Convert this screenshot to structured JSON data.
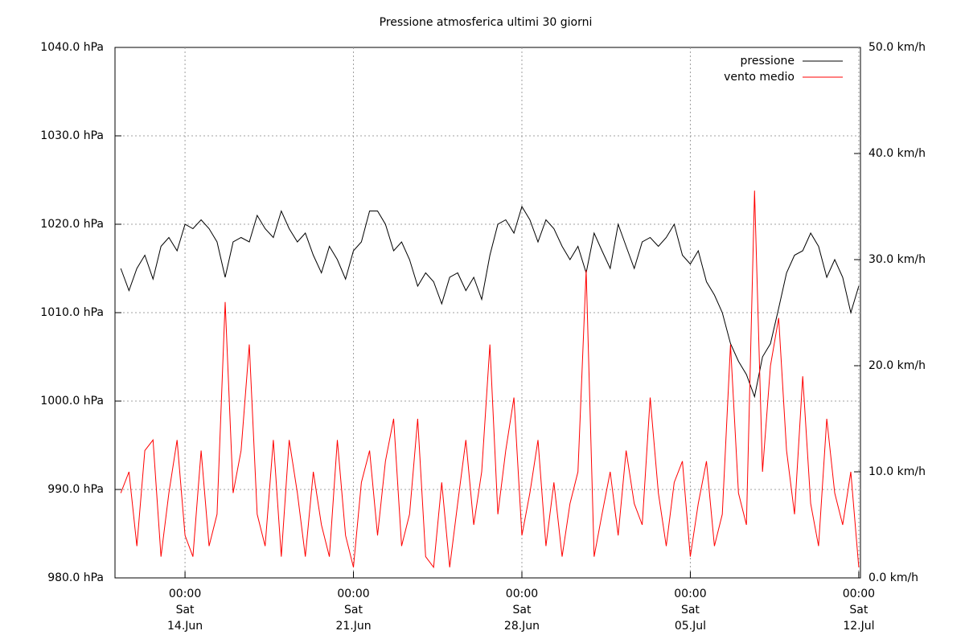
{
  "chart_data": {
    "type": "line",
    "title": "Pressione atmosferica ultimi 30 giorni",
    "xlim": [
      11.09,
      42.07
    ],
    "xticks": [
      {
        "value": 14,
        "time": "00:00",
        "day": "Sat",
        "date": "14.Jun"
      },
      {
        "value": 21,
        "time": "00:00",
        "day": "Sat",
        "date": "21.Jun"
      },
      {
        "value": 28,
        "time": "00:00",
        "day": "Sat",
        "date": "28.Jun"
      },
      {
        "value": 35,
        "time": "00:00",
        "day": "Sat",
        "date": "05.Jul"
      },
      {
        "value": 42,
        "time": "00:00",
        "day": "Sat",
        "date": "12.Jul"
      }
    ],
    "ylim": [
      980,
      1040
    ],
    "yticks": [
      {
        "value": 980,
        "label": "980.0 hPa"
      },
      {
        "value": 990,
        "label": "990.0 hPa"
      },
      {
        "value": 1000,
        "label": "1000.0 hPa"
      },
      {
        "value": 1010,
        "label": "1010.0 hPa"
      },
      {
        "value": 1020,
        "label": "1020.0 hPa"
      },
      {
        "value": 1030,
        "label": "1030.0 hPa"
      },
      {
        "value": 1040,
        "label": "1040.0 hPa"
      }
    ],
    "y2lim": [
      0,
      50
    ],
    "y2ticks": [
      {
        "value": 0,
        "label": "0.0 km/h"
      },
      {
        "value": 10,
        "label": "10.0 km/h"
      },
      {
        "value": 20,
        "label": "20.0 km/h"
      },
      {
        "value": 30,
        "label": "30.0 km/h"
      },
      {
        "value": 40,
        "label": "40.0 km/h"
      },
      {
        "value": 50,
        "label": "50.0 km/h"
      }
    ],
    "grid": true,
    "legend": "top-right",
    "x": [
      11.33,
      11.67,
      12,
      12.33,
      12.67,
      13,
      13.33,
      13.67,
      14,
      14.33,
      14.67,
      15,
      15.33,
      15.67,
      16,
      16.33,
      16.67,
      17,
      17.33,
      17.67,
      18,
      18.33,
      18.67,
      19,
      19.33,
      19.67,
      20,
      20.33,
      20.67,
      21,
      21.33,
      21.67,
      22,
      22.33,
      22.67,
      23,
      23.33,
      23.67,
      24,
      24.33,
      24.67,
      25,
      25.33,
      25.67,
      26,
      26.33,
      26.67,
      27,
      27.33,
      27.67,
      28,
      28.33,
      28.67,
      29,
      29.33,
      29.67,
      30,
      30.33,
      30.67,
      31,
      31.33,
      31.67,
      32,
      32.33,
      32.67,
      33,
      33.33,
      33.67,
      34,
      34.33,
      34.67,
      35,
      35.33,
      35.67,
      36,
      36.33,
      36.67,
      37,
      37.33,
      37.67,
      38,
      38.33,
      38.67,
      39,
      39.33,
      39.67,
      40,
      40.33,
      40.67,
      41,
      41.33,
      41.67,
      42
    ],
    "series": [
      {
        "name": "pressione",
        "color": "#000000",
        "axis": "y",
        "values": [
          1015,
          1012.5,
          1015,
          1016.5,
          1013.8,
          1017.5,
          1018.5,
          1017,
          1020,
          1019.5,
          1020.5,
          1019.5,
          1018,
          1014,
          1018,
          1018.5,
          1018,
          1021,
          1019.5,
          1018.5,
          1021.5,
          1019.5,
          1018,
          1019,
          1016.5,
          1014.5,
          1017.5,
          1016,
          1013.8,
          1017,
          1018,
          1021.5,
          1021.5,
          1020,
          1017,
          1018,
          1016,
          1013,
          1014.5,
          1013.5,
          1011,
          1014,
          1014.5,
          1012.5,
          1014,
          1011.5,
          1016.5,
          1020,
          1020.5,
          1019,
          1022,
          1020.5,
          1018,
          1020.5,
          1019.5,
          1017.5,
          1016,
          1017.5,
          1014.5,
          1019,
          1017,
          1015,
          1020,
          1017.5,
          1015,
          1018,
          1018.5,
          1017.5,
          1018.5,
          1020,
          1016.5,
          1015.5,
          1017,
          1013.5,
          1012,
          1010,
          1006.5,
          1004.5,
          1003,
          1000.5,
          1005,
          1006.5,
          1010.5,
          1014.5,
          1016.5,
          1017,
          1019,
          1017.5,
          1014,
          1016,
          1014,
          1010,
          1013
        ]
      },
      {
        "name": "vento medio",
        "color": "#ff0000",
        "axis": "y2",
        "values": [
          8,
          10,
          3,
          12,
          13,
          2,
          8,
          13,
          4,
          2,
          12,
          3,
          6,
          26,
          8,
          12,
          22,
          6,
          3,
          13,
          2,
          13,
          8,
          2,
          10,
          5,
          2,
          13,
          4,
          1,
          9,
          12,
          4,
          11,
          15,
          3,
          6,
          15,
          2,
          1,
          9,
          1,
          7,
          13,
          5,
          10,
          22,
          6,
          12,
          17,
          4,
          8,
          13,
          3,
          9,
          2,
          7,
          10,
          29,
          2,
          6,
          10,
          4,
          12,
          7,
          5,
          17,
          8,
          3,
          9,
          11,
          2,
          7,
          11,
          3,
          6,
          22,
          8,
          5,
          36.5,
          10,
          20,
          24.5,
          12,
          6,
          19,
          7,
          3,
          15,
          8,
          5,
          10,
          1
        ]
      }
    ]
  }
}
